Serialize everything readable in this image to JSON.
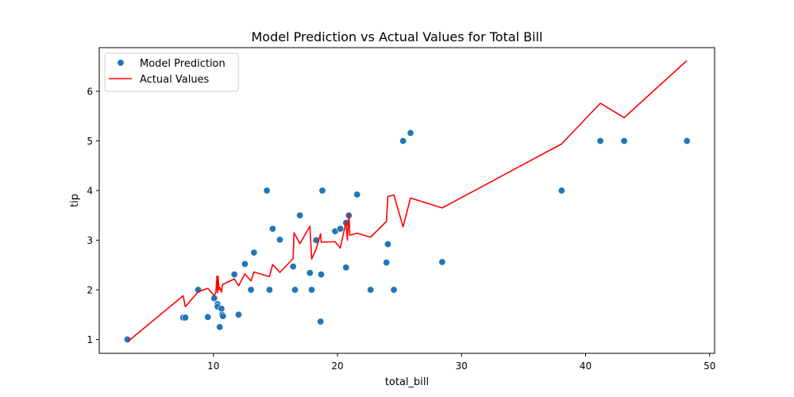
{
  "chart_data": {
    "type": "scatter",
    "title": "Model Prediction vs Actual Values for Total Bill",
    "xlabel": "total_bill",
    "ylabel": "tip",
    "xlim": [
      0.8,
      50.4
    ],
    "ylim": [
      0.72,
      6.88
    ],
    "xticks": [
      10,
      20,
      30,
      40,
      50
    ],
    "yticks": [
      1,
      2,
      3,
      4,
      5,
      6
    ],
    "grid": false,
    "legend_position": "top-left",
    "colors": {
      "scatter": "#1f77b4",
      "line": "#ff0000"
    },
    "series": [
      {
        "name": "Model Prediction",
        "kind": "scatter",
        "points": [
          [
            3.07,
            1.0
          ],
          [
            7.56,
            1.44
          ],
          [
            7.74,
            1.44
          ],
          [
            8.77,
            2.0
          ],
          [
            9.55,
            1.45
          ],
          [
            10.07,
            1.83
          ],
          [
            10.34,
            1.71
          ],
          [
            10.34,
            1.66
          ],
          [
            10.51,
            1.25
          ],
          [
            10.65,
            1.62
          ],
          [
            10.71,
            1.5
          ],
          [
            10.77,
            1.47
          ],
          [
            11.69,
            2.31
          ],
          [
            12.03,
            1.5
          ],
          [
            12.54,
            2.52
          ],
          [
            13.03,
            2.0
          ],
          [
            13.27,
            2.75
          ],
          [
            14.31,
            4.0
          ],
          [
            14.52,
            2.0
          ],
          [
            14.78,
            3.23
          ],
          [
            15.36,
            3.01
          ],
          [
            16.43,
            2.47
          ],
          [
            16.58,
            2.0
          ],
          [
            16.97,
            3.5
          ],
          [
            17.78,
            2.34
          ],
          [
            17.92,
            2.0
          ],
          [
            18.28,
            3.0
          ],
          [
            18.64,
            1.36
          ],
          [
            18.69,
            2.31
          ],
          [
            18.78,
            4.0
          ],
          [
            19.81,
            3.18
          ],
          [
            20.23,
            3.23
          ],
          [
            20.69,
            2.45
          ],
          [
            20.69,
            3.35
          ],
          [
            20.92,
            3.5
          ],
          [
            21.58,
            3.92
          ],
          [
            22.67,
            2.0
          ],
          [
            23.95,
            2.55
          ],
          [
            24.06,
            2.92
          ],
          [
            24.55,
            2.0
          ],
          [
            25.29,
            5.0
          ],
          [
            25.89,
            5.16
          ],
          [
            28.44,
            2.56
          ],
          [
            38.07,
            4.0
          ],
          [
            41.19,
            5.0
          ],
          [
            43.11,
            5.0
          ],
          [
            48.17,
            5.0
          ]
        ]
      },
      {
        "name": "Actual Values",
        "kind": "line",
        "points": [
          [
            3.07,
            0.95
          ],
          [
            7.56,
            1.88
          ],
          [
            7.74,
            1.66
          ],
          [
            8.77,
            1.96
          ],
          [
            9.55,
            2.03
          ],
          [
            10.07,
            1.88
          ],
          [
            10.2,
            1.95
          ],
          [
            10.29,
            2.28
          ],
          [
            10.34,
            1.94
          ],
          [
            10.38,
            2.27
          ],
          [
            10.45,
            2.0
          ],
          [
            10.51,
            2.05
          ],
          [
            10.65,
            1.95
          ],
          [
            10.71,
            2.08
          ],
          [
            10.77,
            2.11
          ],
          [
            11.69,
            2.22
          ],
          [
            12.03,
            2.08
          ],
          [
            12.54,
            2.32
          ],
          [
            13.03,
            2.18
          ],
          [
            13.27,
            2.36
          ],
          [
            14.31,
            2.28
          ],
          [
            14.52,
            2.27
          ],
          [
            14.78,
            2.51
          ],
          [
            15.36,
            2.35
          ],
          [
            16.43,
            2.63
          ],
          [
            16.5,
            3.15
          ],
          [
            16.97,
            2.93
          ],
          [
            17.78,
            3.28
          ],
          [
            17.92,
            2.62
          ],
          [
            18.28,
            2.82
          ],
          [
            18.64,
            3.13
          ],
          [
            18.69,
            2.96
          ],
          [
            19.81,
            2.97
          ],
          [
            20.23,
            2.84
          ],
          [
            20.69,
            3.37
          ],
          [
            20.8,
            3.0
          ],
          [
            20.92,
            3.52
          ],
          [
            21.0,
            3.1
          ],
          [
            21.58,
            3.14
          ],
          [
            22.67,
            3.06
          ],
          [
            23.95,
            3.38
          ],
          [
            24.06,
            3.88
          ],
          [
            24.55,
            3.91
          ],
          [
            25.29,
            3.27
          ],
          [
            25.89,
            3.85
          ],
          [
            28.44,
            3.65
          ],
          [
            38.07,
            4.94
          ],
          [
            41.19,
            5.76
          ],
          [
            43.11,
            5.47
          ],
          [
            48.17,
            6.62
          ]
        ]
      }
    ]
  }
}
